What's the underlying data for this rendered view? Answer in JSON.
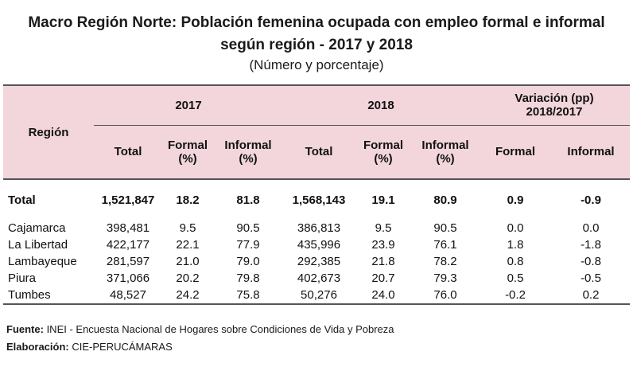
{
  "title": {
    "line1": "Macro Región Norte: Población femenina ocupada con empleo formal e informal",
    "line2": "según región - 2017 y 2018",
    "line3": "(Número y porcentaje)"
  },
  "header": {
    "region": "Región",
    "year2017": "2017",
    "year2018": "2018",
    "variation_line1": "Variación (pp)",
    "variation_line2": "2018/2017",
    "total": "Total",
    "formal_l1": "Formal",
    "formal_l2": "(%)",
    "informal_l1": "Informal",
    "informal_l2": "(%)",
    "var_formal": "Formal",
    "var_informal": "Informal"
  },
  "total_row": {
    "region": "Total",
    "total_2017": "1,521,847",
    "formal_2017": "18.2",
    "informal_2017": "81.8",
    "total_2018": "1,568,143",
    "formal_2018": "19.1",
    "informal_2018": "80.9",
    "var_formal": "0.9",
    "var_informal": "-0.9"
  },
  "rows": [
    {
      "region": "Cajamarca",
      "total_2017": "398,481",
      "formal_2017": "9.5",
      "informal_2017": "90.5",
      "total_2018": "386,813",
      "formal_2018": "9.5",
      "informal_2018": "90.5",
      "var_formal": "0.0",
      "var_informal": "0.0"
    },
    {
      "region": "La Libertad",
      "total_2017": "422,177",
      "formal_2017": "22.1",
      "informal_2017": "77.9",
      "total_2018": "435,996",
      "formal_2018": "23.9",
      "informal_2018": "76.1",
      "var_formal": "1.8",
      "var_informal": "-1.8"
    },
    {
      "region": "Lambayeque",
      "total_2017": "281,597",
      "formal_2017": "21.0",
      "informal_2017": "79.0",
      "total_2018": "292,385",
      "formal_2018": "21.8",
      "informal_2018": "78.2",
      "var_formal": "0.8",
      "var_informal": "-0.8"
    },
    {
      "region": "Piura",
      "total_2017": "371,066",
      "formal_2017": "20.2",
      "informal_2017": "79.8",
      "total_2018": "402,673",
      "formal_2018": "20.7",
      "informal_2018": "79.3",
      "var_formal": "0.5",
      "var_informal": "-0.5"
    },
    {
      "region": "Tumbes",
      "total_2017": "48,527",
      "formal_2017": "24.2",
      "informal_2017": "75.8",
      "total_2018": "50,276",
      "formal_2018": "24.0",
      "informal_2018": "76.0",
      "var_formal": "-0.2",
      "var_informal": "0.2"
    }
  ],
  "footer": {
    "source_label": "Fuente:",
    "source_text": " INEI - Encuesta Nacional de Hogares sobre Condiciones de Vida y Pobreza",
    "elab_label": "Elaboración:",
    "elab_text": " CIE-PERUCÁMARAS"
  },
  "colors": {
    "header_bg": "#f2d6dc",
    "rule": "#555555"
  }
}
